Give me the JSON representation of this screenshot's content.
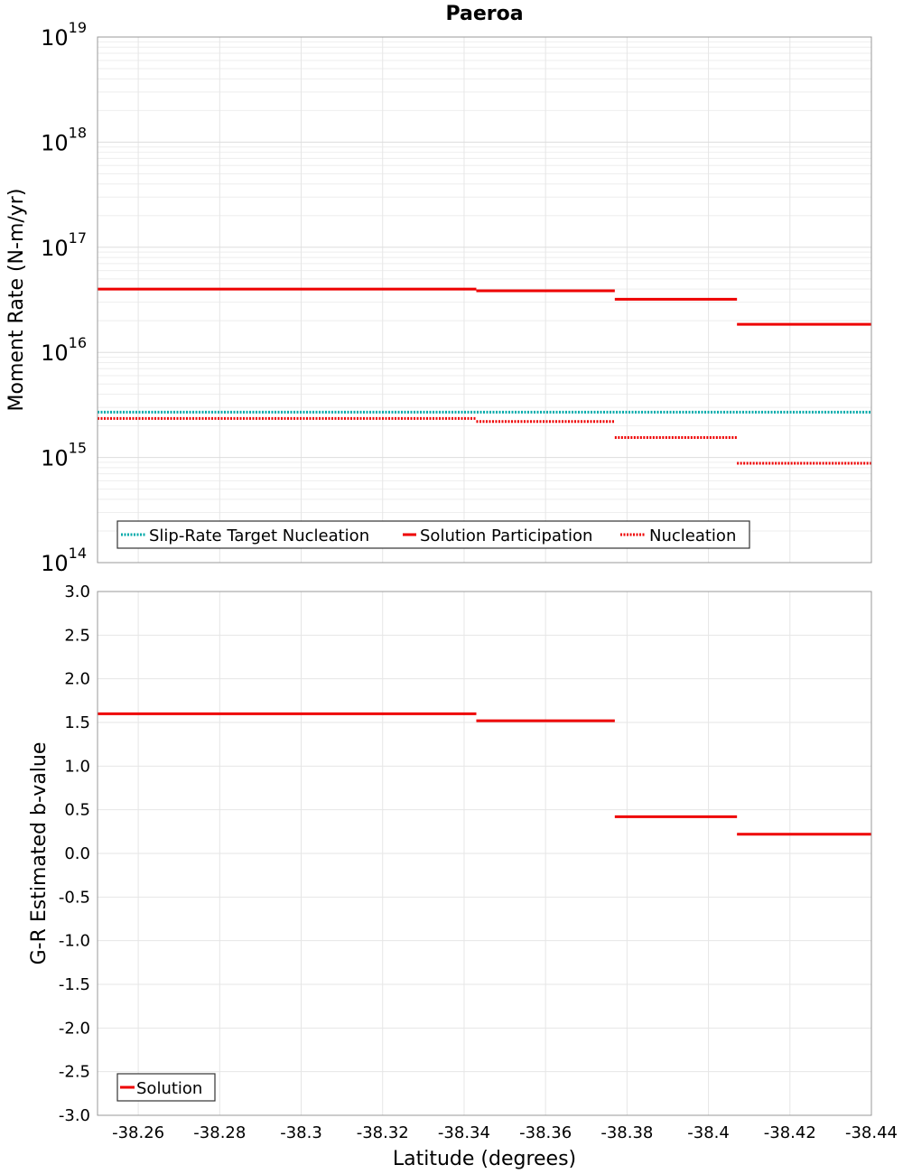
{
  "chart_data": [
    {
      "type": "line",
      "title": "Paeroa",
      "ylabel": "Moment Rate (N-m/yr)",
      "yscale": "log",
      "ylim": [
        100000000000000.0,
        1e+19
      ],
      "xlim": [
        -38.25,
        -38.44
      ],
      "x_ticks": [
        "-38.26",
        "-38.28",
        "-38.3",
        "-38.32",
        "-38.34",
        "-38.36",
        "-38.38",
        "-38.4",
        "-38.42",
        "-38.44"
      ],
      "y_ticks": [
        {
          "base": "10",
          "exp": "14"
        },
        {
          "base": "10",
          "exp": "15"
        },
        {
          "base": "10",
          "exp": "16"
        },
        {
          "base": "10",
          "exp": "17"
        },
        {
          "base": "10",
          "exp": "18"
        },
        {
          "base": "10",
          "exp": "19"
        }
      ],
      "grid": true,
      "legend_position": "bottom-left",
      "series": [
        {
          "name": "Slip-Rate Target Nucleation",
          "color": "#00aaaa",
          "style": "dotted",
          "segments": [
            {
              "x0": -38.25,
              "x1": -38.44,
              "y": 2700000000000000.0
            }
          ]
        },
        {
          "name": "Solution Participation",
          "color": "#ee0000",
          "style": "solid",
          "segments": [
            {
              "x0": -38.25,
              "x1": -38.343,
              "y": 4e+16
            },
            {
              "x0": -38.343,
              "x1": -38.377,
              "y": 3.85e+16
            },
            {
              "x0": -38.377,
              "x1": -38.407,
              "y": 3.2e+16
            },
            {
              "x0": -38.407,
              "x1": -38.44,
              "y": 1.85e+16
            }
          ]
        },
        {
          "name": "Nucleation",
          "color": "#ee0000",
          "style": "dotted",
          "segments": [
            {
              "x0": -38.25,
              "x1": -38.343,
              "y": 2350000000000000.0
            },
            {
              "x0": -38.343,
              "x1": -38.377,
              "y": 2200000000000000.0
            },
            {
              "x0": -38.377,
              "x1": -38.407,
              "y": 1550000000000000.0
            },
            {
              "x0": -38.407,
              "x1": -38.44,
              "y": 880000000000000.0
            }
          ]
        }
      ]
    },
    {
      "type": "line",
      "xlabel": "Latitude (degrees)",
      "ylabel": "G-R Estimated b-value",
      "ylim": [
        -3.0,
        3.0
      ],
      "xlim": [
        -38.25,
        -38.44
      ],
      "x_ticks": [
        "-38.26",
        "-38.28",
        "-38.3",
        "-38.32",
        "-38.34",
        "-38.36",
        "-38.38",
        "-38.4",
        "-38.42",
        "-38.44"
      ],
      "y_ticks": [
        "3.0",
        "2.5",
        "2.0",
        "1.5",
        "1.0",
        "0.5",
        "0.0",
        "-0.5",
        "-1.0",
        "-1.5",
        "-2.0",
        "-2.5",
        "-3.0"
      ],
      "grid": true,
      "legend_position": "bottom-left",
      "series": [
        {
          "name": "Solution",
          "color": "#ee0000",
          "style": "solid",
          "segments": [
            {
              "x0": -38.25,
              "x1": -38.343,
              "y": 1.6
            },
            {
              "x0": -38.343,
              "x1": -38.377,
              "y": 1.52
            },
            {
              "x0": -38.377,
              "x1": -38.407,
              "y": 0.42
            },
            {
              "x0": -38.407,
              "x1": -38.44,
              "y": 0.22
            }
          ]
        }
      ]
    }
  ]
}
